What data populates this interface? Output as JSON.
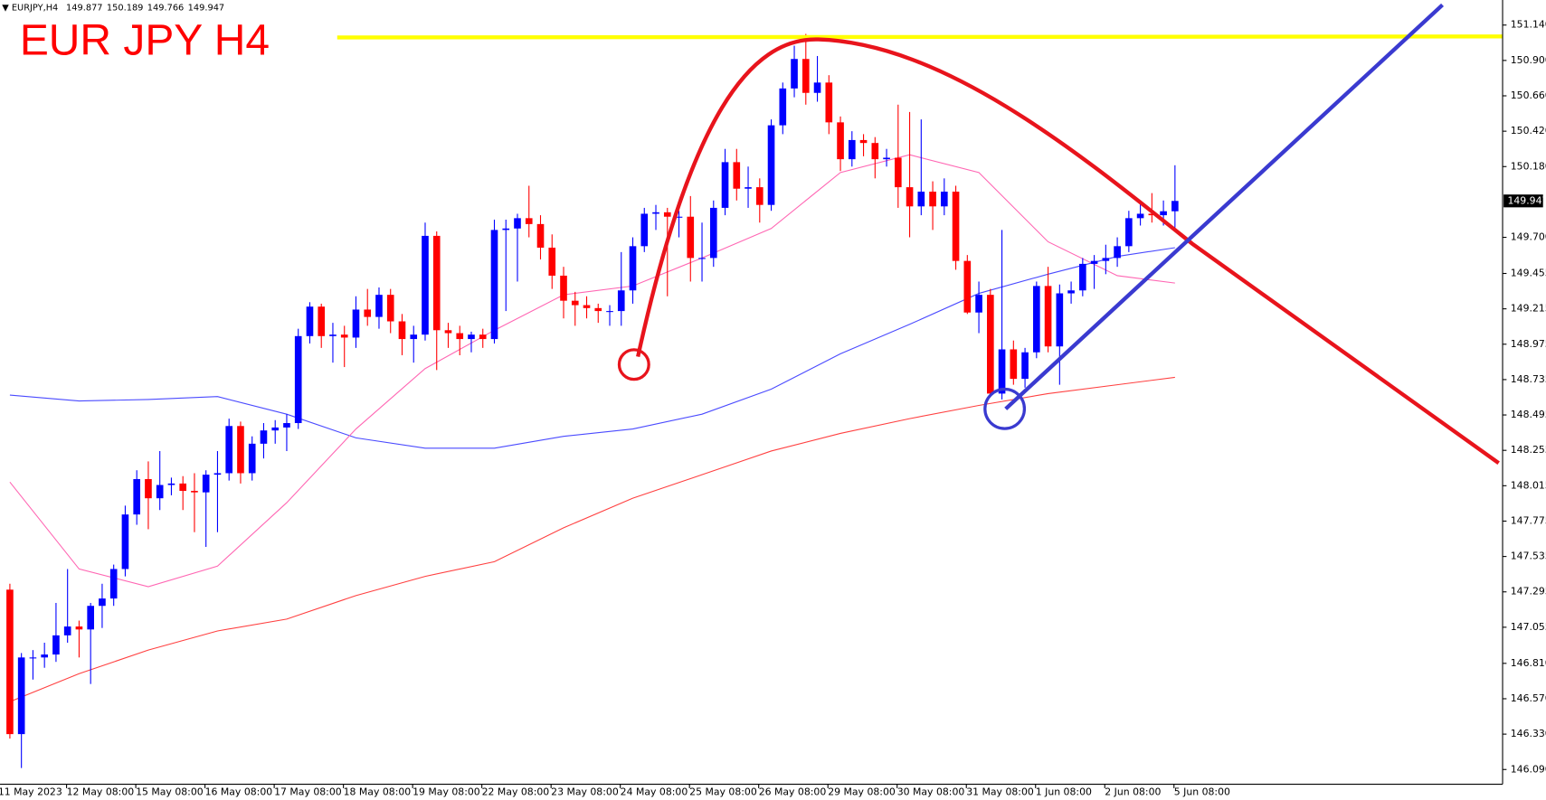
{
  "chart_data": {
    "type": "candlestick",
    "title": "EUR JPY H4",
    "symbol": "EURJPY,H4",
    "up_color": "#0000ff",
    "down_color": "#ff0000",
    "ylim": [
      145.99,
      151.31
    ],
    "yticks": [
      {
        "value": 151.14,
        "label": "151.140"
      },
      {
        "value": 150.9,
        "label": "150.900"
      },
      {
        "value": 150.66,
        "label": "150.660"
      },
      {
        "value": 150.42,
        "label": "150.420"
      },
      {
        "value": 150.18,
        "label": "150.180"
      },
      {
        "value": 149.7,
        "label": "149.700"
      },
      149.455,
      149.215,
      148.975,
      148.735,
      148.495,
      148.255,
      148.015,
      147.775,
      147.535,
      147.295,
      147.055,
      {
        "value": 146.81,
        "label": "146.810"
      },
      {
        "value": 146.57,
        "label": "146.570"
      },
      {
        "value": 146.33,
        "label": "146.330"
      },
      {
        "value": 146.09,
        "label": "146.090"
      }
    ],
    "categories": [
      "11 May 2023",
      null,
      null,
      null,
      null,
      "12 May 08:00",
      null,
      null,
      null,
      null,
      null,
      "15 May 08:00",
      null,
      null,
      null,
      null,
      null,
      "16 May 08:00",
      null,
      null,
      null,
      null,
      null,
      "17 May 08:00",
      null,
      null,
      null,
      null,
      null,
      "18 May 08:00",
      null,
      null,
      null,
      null,
      null,
      "19 May 08:00",
      null,
      null,
      null,
      null,
      null,
      "22 May 08:00",
      null,
      null,
      null,
      null,
      null,
      "23 May 08:00",
      null,
      null,
      null,
      null,
      null,
      "24 May 08:00",
      null,
      null,
      null,
      null,
      null,
      "25 May 08:00",
      null,
      null,
      null,
      null,
      null,
      "26 May 08:00",
      null,
      null,
      null,
      null,
      null,
      "29 May 08:00",
      null,
      null,
      null,
      null,
      null,
      "30 May 08:00",
      null,
      null,
      null,
      null,
      null,
      "31 May 08:00",
      null,
      null,
      null,
      null,
      null,
      "1 Jun 08:00",
      null,
      null,
      null,
      null,
      null,
      "2 Jun 08:00",
      null,
      null,
      null,
      null,
      null,
      "5 Jun 08:00"
    ],
    "ohlc": [
      [
        147.31,
        147.35,
        146.3,
        146.33
      ],
      [
        146.33,
        146.88,
        146.1,
        146.85
      ],
      [
        146.85,
        146.9,
        146.7,
        146.85
      ],
      [
        146.85,
        146.95,
        146.78,
        146.87
      ],
      [
        146.87,
        147.22,
        146.82,
        147.0
      ],
      [
        147.0,
        147.45,
        146.95,
        147.06
      ],
      [
        147.06,
        147.1,
        146.85,
        147.04
      ],
      [
        147.04,
        147.22,
        146.67,
        147.2
      ],
      [
        147.2,
        147.35,
        147.05,
        147.25
      ],
      [
        147.25,
        147.48,
        147.2,
        147.45
      ],
      [
        147.45,
        147.88,
        147.4,
        147.82
      ],
      [
        147.82,
        148.12,
        147.75,
        148.06
      ],
      [
        148.06,
        148.18,
        147.72,
        147.93
      ],
      [
        147.93,
        148.25,
        147.85,
        148.02
      ],
      [
        148.02,
        148.07,
        147.95,
        148.03
      ],
      [
        148.03,
        148.08,
        147.85,
        147.98
      ],
      [
        147.98,
        148.1,
        147.7,
        147.97
      ],
      [
        147.97,
        148.12,
        147.6,
        148.09
      ],
      [
        148.09,
        148.25,
        147.7,
        148.1
      ],
      [
        148.1,
        148.47,
        148.05,
        148.42
      ],
      [
        148.42,
        148.45,
        148.03,
        148.1
      ],
      [
        148.1,
        148.35,
        148.05,
        148.3
      ],
      [
        148.3,
        148.44,
        148.2,
        148.39
      ],
      [
        148.39,
        148.46,
        148.3,
        148.41
      ],
      [
        148.41,
        148.5,
        148.25,
        148.44
      ],
      [
        148.44,
        149.08,
        148.4,
        149.03
      ],
      [
        149.03,
        149.26,
        148.98,
        149.23
      ],
      [
        149.23,
        149.25,
        148.95,
        149.03
      ],
      [
        149.03,
        149.12,
        148.85,
        149.04
      ],
      [
        149.04,
        149.1,
        148.82,
        149.02
      ],
      [
        149.02,
        149.3,
        148.95,
        149.21
      ],
      [
        149.21,
        149.35,
        149.1,
        149.16
      ],
      [
        149.16,
        149.36,
        149.08,
        149.31
      ],
      [
        149.31,
        149.35,
        149.05,
        149.13
      ],
      [
        149.13,
        149.18,
        148.9,
        149.01
      ],
      [
        149.01,
        149.1,
        148.85,
        149.04
      ],
      [
        149.04,
        149.8,
        149.0,
        149.71
      ],
      [
        149.71,
        149.74,
        148.8,
        149.07
      ],
      [
        149.07,
        149.12,
        148.95,
        149.05
      ],
      [
        149.05,
        149.1,
        148.9,
        149.01
      ],
      [
        149.01,
        149.06,
        148.92,
        149.04
      ],
      [
        149.04,
        149.08,
        148.95,
        149.01
      ],
      [
        149.01,
        149.82,
        148.98,
        149.75
      ],
      [
        149.75,
        149.82,
        149.2,
        149.76
      ],
      [
        149.76,
        149.86,
        149.4,
        149.83
      ],
      [
        149.83,
        150.05,
        149.7,
        149.79
      ],
      [
        149.79,
        149.85,
        149.55,
        149.63
      ],
      [
        149.63,
        149.72,
        149.35,
        149.44
      ],
      [
        149.44,
        149.5,
        149.15,
        149.27
      ],
      [
        149.27,
        149.33,
        149.1,
        149.24
      ],
      [
        149.24,
        149.3,
        149.15,
        149.22
      ],
      [
        149.22,
        149.25,
        149.12,
        149.2
      ],
      [
        149.2,
        149.24,
        149.1,
        149.2
      ],
      [
        149.2,
        149.6,
        149.1,
        149.34
      ],
      [
        149.34,
        149.7,
        149.25,
        149.64
      ],
      [
        149.64,
        149.9,
        149.6,
        149.86
      ],
      [
        149.86,
        149.92,
        149.75,
        149.87
      ],
      [
        149.87,
        149.9,
        149.3,
        149.84
      ],
      [
        149.84,
        149.88,
        149.7,
        149.84
      ],
      [
        149.84,
        149.98,
        149.4,
        149.56
      ],
      [
        149.56,
        149.8,
        149.4,
        149.56
      ],
      [
        149.56,
        149.95,
        149.5,
        149.9
      ],
      [
        149.9,
        150.3,
        149.85,
        150.21
      ],
      [
        150.21,
        150.3,
        149.95,
        150.03
      ],
      [
        150.03,
        150.18,
        149.9,
        150.04
      ],
      [
        150.04,
        150.1,
        149.8,
        149.92
      ],
      [
        149.92,
        150.5,
        149.88,
        150.46
      ],
      [
        150.46,
        150.75,
        150.4,
        150.71
      ],
      [
        150.71,
        151.0,
        150.65,
        150.91
      ],
      [
        150.91,
        151.08,
        150.6,
        150.68
      ],
      [
        150.68,
        150.93,
        150.62,
        150.75
      ],
      [
        150.75,
        150.8,
        150.4,
        150.48
      ],
      [
        150.48,
        150.52,
        150.15,
        150.23
      ],
      [
        150.23,
        150.42,
        150.18,
        150.36
      ],
      [
        150.36,
        150.4,
        150.25,
        150.34
      ],
      [
        150.34,
        150.38,
        150.1,
        150.23
      ],
      [
        150.23,
        150.3,
        150.18,
        150.24
      ],
      [
        150.24,
        150.6,
        149.9,
        150.04
      ],
      [
        150.04,
        150.55,
        149.7,
        149.91
      ],
      [
        149.91,
        150.5,
        149.85,
        150.01
      ],
      [
        150.01,
        150.08,
        149.75,
        149.91
      ],
      [
        149.91,
        150.1,
        149.85,
        150.01
      ],
      [
        150.01,
        150.05,
        149.48,
        149.54
      ],
      [
        149.54,
        149.58,
        149.18,
        149.19
      ],
      [
        149.19,
        149.4,
        149.05,
        149.31
      ],
      [
        149.31,
        149.35,
        148.62,
        148.64
      ],
      [
        148.64,
        149.75,
        148.6,
        148.94
      ],
      [
        148.94,
        149.0,
        148.7,
        148.74
      ],
      [
        148.74,
        148.95,
        148.68,
        148.92
      ],
      [
        148.92,
        149.4,
        148.88,
        149.37
      ],
      [
        149.37,
        149.5,
        148.92,
        148.96
      ],
      [
        148.96,
        149.38,
        148.7,
        149.32
      ],
      [
        149.32,
        149.4,
        149.25,
        149.34
      ],
      [
        149.34,
        149.56,
        149.3,
        149.52
      ],
      [
        149.52,
        149.58,
        149.35,
        149.54
      ],
      [
        149.54,
        149.65,
        149.45,
        149.56
      ],
      [
        149.56,
        149.7,
        149.5,
        149.64
      ],
      [
        149.64,
        149.88,
        149.6,
        149.83
      ],
      [
        149.83,
        149.95,
        149.78,
        149.86
      ],
      [
        149.86,
        150.0,
        149.8,
        149.85
      ],
      [
        149.85,
        149.95,
        149.78,
        149.877
      ],
      [
        149.877,
        150.189,
        149.766,
        149.947
      ]
    ],
    "indicators": [
      {
        "color": "#4a4aff",
        "x": [
          0,
          6,
          12,
          18,
          24,
          30,
          36,
          42,
          48,
          54,
          60,
          66,
          72,
          78,
          84,
          90,
          96,
          101
        ],
        "values": [
          148.63,
          148.59,
          148.6,
          148.62,
          148.5,
          148.34,
          148.27,
          148.27,
          148.35,
          148.4,
          148.5,
          148.67,
          148.91,
          149.11,
          149.32,
          149.45,
          149.57,
          149.63
        ]
      },
      {
        "color": "#ff66b3",
        "x": [
          0,
          6,
          12,
          18,
          24,
          30,
          36,
          42,
          48,
          54,
          60,
          66,
          72,
          78,
          84,
          90,
          96,
          101
        ],
        "values": [
          148.04,
          147.45,
          147.33,
          147.47,
          147.9,
          148.4,
          148.81,
          149.07,
          149.31,
          149.37,
          149.56,
          149.76,
          150.14,
          150.26,
          150.14,
          149.67,
          149.44,
          149.39
        ]
      },
      {
        "color": "#ff4040",
        "x": [
          0,
          6,
          12,
          18,
          24,
          30,
          36,
          42,
          48,
          54,
          60,
          66,
          72,
          78,
          84,
          90,
          96,
          101
        ],
        "values": [
          146.55,
          146.74,
          146.9,
          147.03,
          147.11,
          147.27,
          147.4,
          147.5,
          147.73,
          147.93,
          148.09,
          148.25,
          148.37,
          148.47,
          148.56,
          148.64,
          148.7,
          148.75
        ]
      }
    ]
  }
}
